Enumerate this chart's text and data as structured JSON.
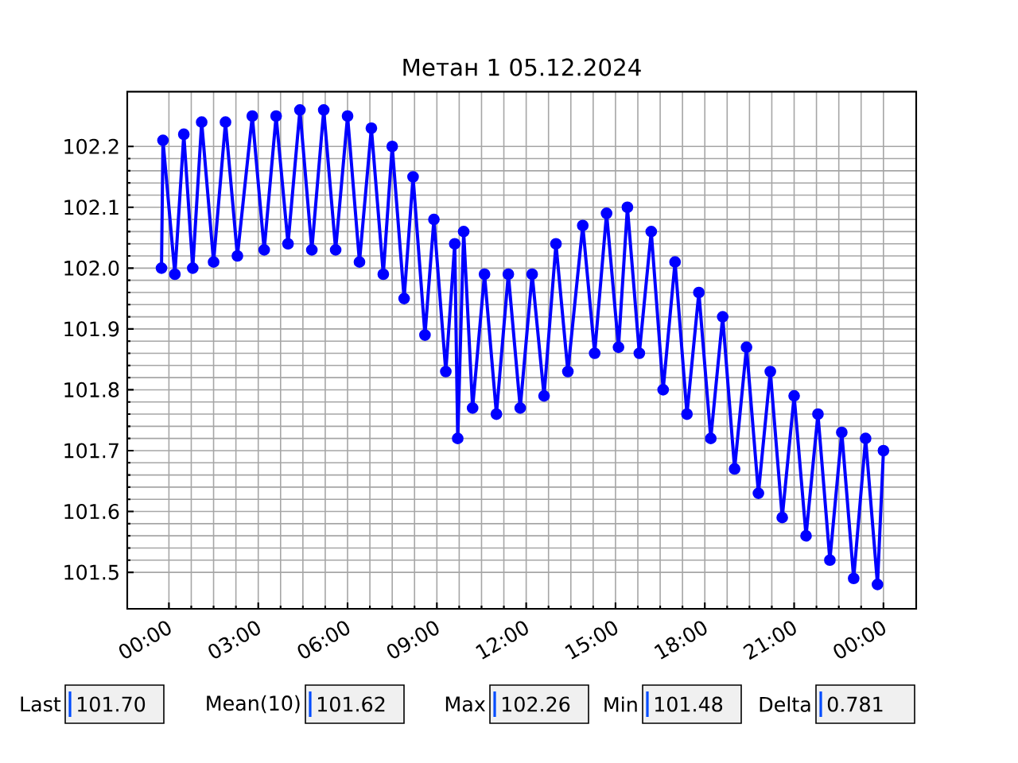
{
  "chart_data": {
    "type": "line",
    "title": "Метан 1 05.12.2024",
    "x": [
      -0.25,
      -0.2,
      0.2,
      0.5,
      0.8,
      1.1,
      1.5,
      1.9,
      2.3,
      2.8,
      3.2,
      3.6,
      4.0,
      4.4,
      4.8,
      5.2,
      5.6,
      6.0,
      6.4,
      6.8,
      7.2,
      7.5,
      7.9,
      8.2,
      8.6,
      8.9,
      9.3,
      9.6,
      9.7,
      9.9,
      10.2,
      10.6,
      11.0,
      11.4,
      11.8,
      12.2,
      12.6,
      13.0,
      13.4,
      13.9,
      14.3,
      14.7,
      15.1,
      15.4,
      15.8,
      16.2,
      16.6,
      17.0,
      17.4,
      17.8,
      18.2,
      18.6,
      19.0,
      19.4,
      19.8,
      20.2,
      20.6,
      21.0,
      21.4,
      21.8,
      22.2,
      22.6,
      23.0,
      23.4,
      23.8,
      24.0
    ],
    "series": [
      {
        "color": "#0000ff",
        "values": [
          102.0,
          102.21,
          101.99,
          102.22,
          102.0,
          102.24,
          102.01,
          102.24,
          102.02,
          102.25,
          102.03,
          102.25,
          102.04,
          102.26,
          102.03,
          102.26,
          102.03,
          102.25,
          102.01,
          102.23,
          101.99,
          102.2,
          101.95,
          102.15,
          101.89,
          102.08,
          101.83,
          102.04,
          101.72,
          102.06,
          101.77,
          101.99,
          101.76,
          101.99,
          101.77,
          101.99,
          101.79,
          102.04,
          101.83,
          102.07,
          101.86,
          102.09,
          101.87,
          102.1,
          101.86,
          102.06,
          101.8,
          102.01,
          101.76,
          101.96,
          101.72,
          101.92,
          101.67,
          101.87,
          101.63,
          101.83,
          101.59,
          101.79,
          101.56,
          101.76,
          101.52,
          101.73,
          101.49,
          101.72,
          101.48,
          101.7
        ]
      }
    ],
    "xlim": [
      -1.4,
      25.1
    ],
    "ylim": [
      101.44,
      102.29
    ],
    "xticks": [
      {
        "value": 0,
        "label": "00:00"
      },
      {
        "value": 3,
        "label": "03:00"
      },
      {
        "value": 6,
        "label": "06:00"
      },
      {
        "value": 9,
        "label": "09:00"
      },
      {
        "value": 12,
        "label": "12:00"
      },
      {
        "value": 15,
        "label": "15:00"
      },
      {
        "value": 18,
        "label": "18:00"
      },
      {
        "value": 21,
        "label": "21:00"
      },
      {
        "value": 24,
        "label": "00:00"
      }
    ],
    "yticks": [
      {
        "value": 101.5,
        "label": "101.5"
      },
      {
        "value": 101.6,
        "label": "101.6"
      },
      {
        "value": 101.7,
        "label": "101.7"
      },
      {
        "value": 101.8,
        "label": "101.8"
      },
      {
        "value": 101.9,
        "label": "101.9"
      },
      {
        "value": 102.0,
        "label": "102.0"
      },
      {
        "value": 102.1,
        "label": "102.1"
      },
      {
        "value": 102.2,
        "label": "102.2"
      }
    ],
    "grid": true,
    "marker": "circle",
    "line_style": "solid",
    "annotations": [
      "Last",
      "101.70",
      "Mean(10)",
      "101.62",
      "Max",
      "102.26",
      "Min",
      "101.48",
      "Delta",
      "0.781"
    ]
  }
}
